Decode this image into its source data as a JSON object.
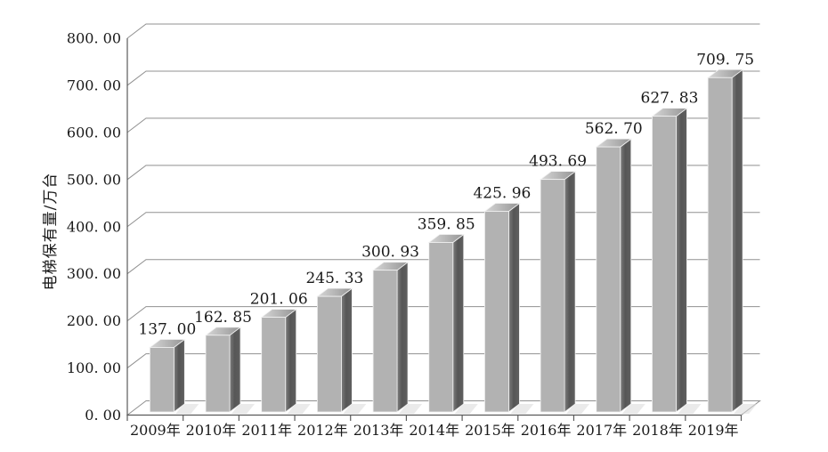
{
  "chart_data": {
    "type": "bar",
    "variant": "3d-column",
    "title": "",
    "categories": [
      "2009年",
      "2010年",
      "2011年",
      "2012年",
      "2013年",
      "2014年",
      "2015年",
      "2016年",
      "2017年",
      "2018年",
      "2019年"
    ],
    "values": [
      137.0,
      162.85,
      201.06,
      245.33,
      300.93,
      359.85,
      425.96,
      493.69,
      562.7,
      627.83,
      709.75
    ],
    "value_labels": [
      "137. 00",
      "162. 85",
      "201. 06",
      "245. 33",
      "300. 93",
      "359. 85",
      "425. 96",
      "493. 69",
      "562. 70",
      "627. 83",
      "709. 75"
    ],
    "xlabel": "",
    "ylabel": "电梯保有量/万台",
    "ylim": [
      0,
      800
    ],
    "ytick_step": 100,
    "ytick_labels": [
      "0. 00",
      "100. 00",
      "200. 00",
      "300. 00",
      "400. 00",
      "500. 00",
      "600. 00",
      "700. 00",
      "800. 00"
    ],
    "grid": true,
    "legend_visible": false,
    "colors": {
      "background": "#ffffff",
      "text": "#1a1a1a",
      "gridline": "#909090",
      "axis": "#5a5a5a",
      "bar_front": "#b2b2b2",
      "bar_side_light": "#7d7d7d",
      "bar_side_dark": "#565656",
      "bar_top_light": "#d7d7d7",
      "bar_top_dark": "#959595",
      "bar_edge": "#f2f2f2",
      "floor_shadow": "#d9d9d9"
    }
  }
}
